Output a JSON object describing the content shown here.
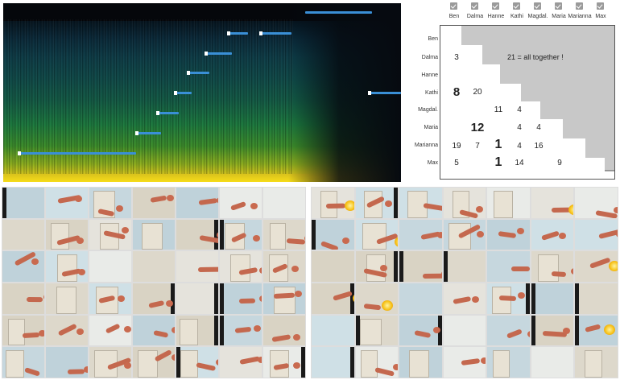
{
  "spectrogram": {
    "marks": [
      {
        "label": "mark-1"
      },
      {
        "label": "mark-2"
      },
      {
        "label": "mark-3"
      },
      {
        "label": "mark-4"
      },
      {
        "label": "mark-5"
      },
      {
        "label": "mark-6"
      },
      {
        "label": "mark-7"
      },
      {
        "label": "mark-8"
      },
      {
        "label": "mark-9"
      },
      {
        "label": "mark-10"
      }
    ]
  },
  "matrix": {
    "columns": [
      "Ben",
      "Dalma",
      "Hanne",
      "Kathi",
      "Magdal.",
      "Maria",
      "Marianna",
      "Max"
    ],
    "rows": [
      "Ben",
      "Dalma",
      "Hanne",
      "Kathi",
      "Magdal.",
      "Maria",
      "Marianna",
      "Max"
    ],
    "cells": {
      "dalma_ben": "3",
      "kathi_ben": "8",
      "kathi_dalma": "20",
      "magdal_hanne": "11",
      "magdal_kathi": "4",
      "maria_dalma": "12",
      "maria_kathi": "4",
      "maria_magdal": "4",
      "marianna_ben": "19",
      "marianna_dalma": "7",
      "marianna_hanne": "1",
      "marianna_kathi": "4",
      "marianna_magdal": "16",
      "max_ben": "5",
      "max_hanne": "1",
      "max_kathi": "14",
      "max_maria": "9"
    },
    "together": "21 = all together !",
    "colors": {
      "gray": "#c8c8c8",
      "white": "#ffffff",
      "check": "#9a9a9a"
    }
  },
  "image_grids": {
    "left": {
      "rows": 6,
      "cols": 7
    },
    "right": {
      "rows": 6,
      "cols": 7,
      "highlight": "#f7c31a"
    }
  }
}
